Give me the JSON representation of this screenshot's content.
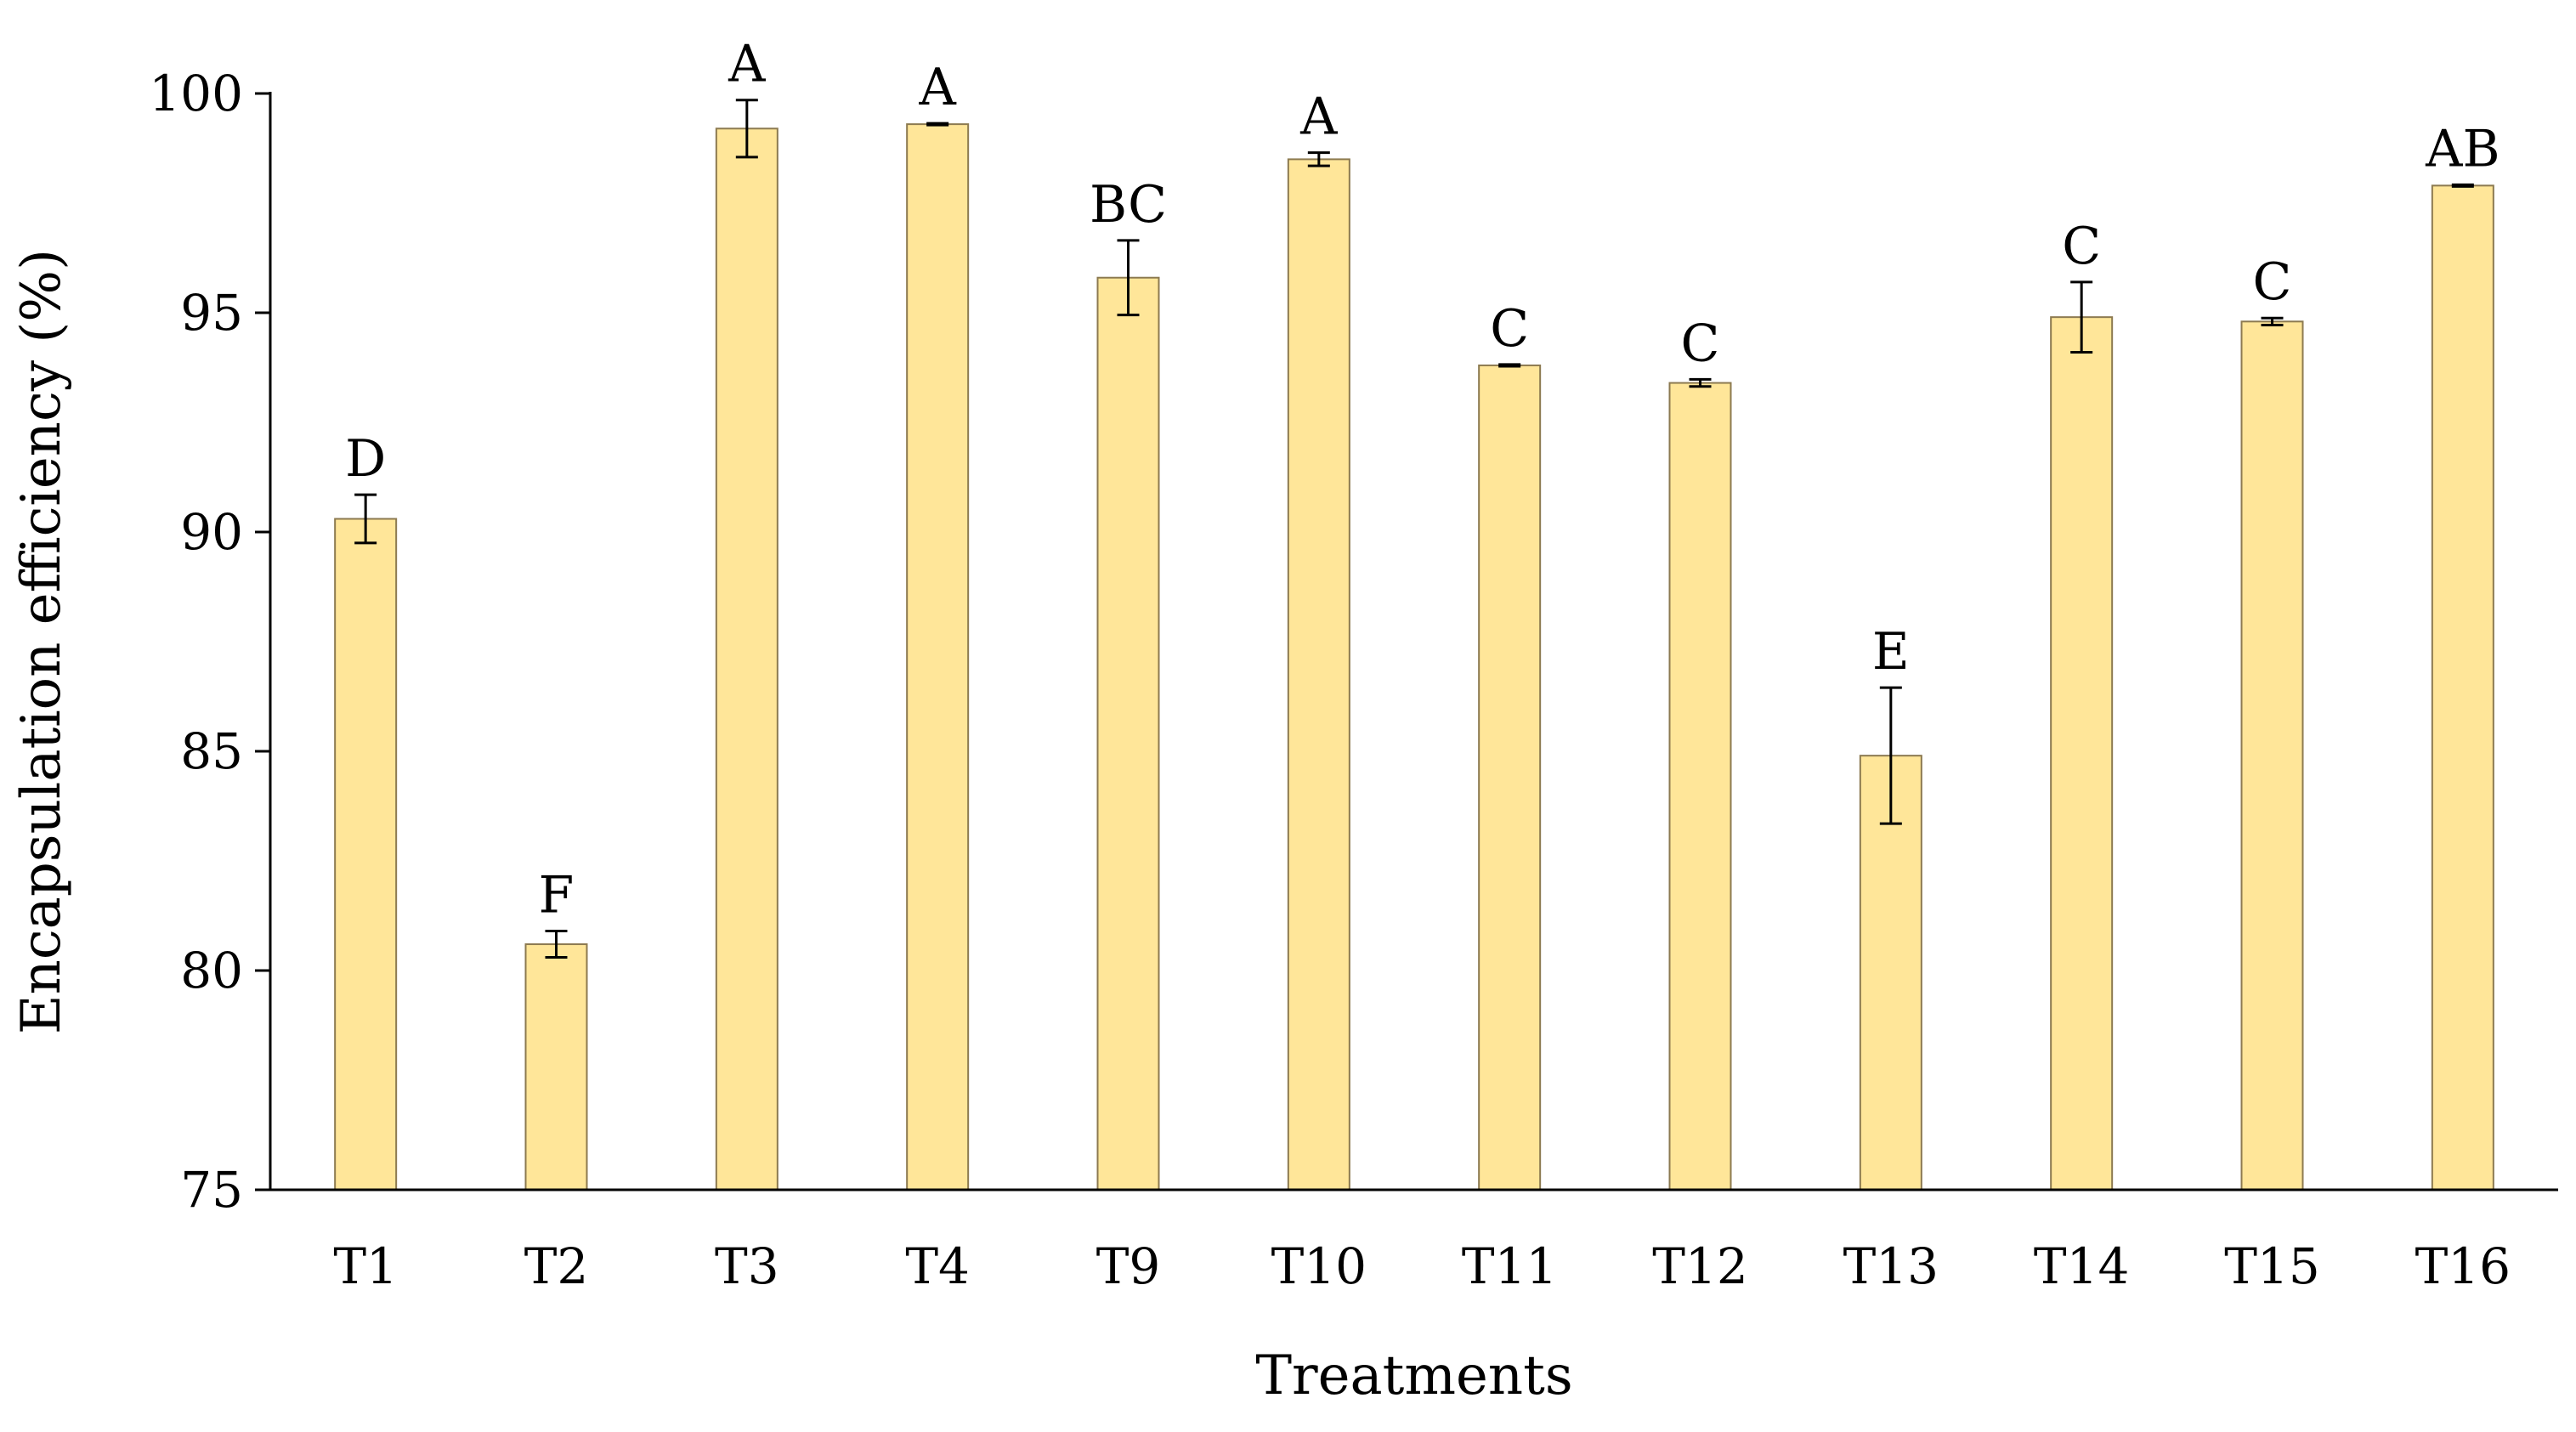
{
  "chart_data": {
    "type": "bar",
    "title": "",
    "xlabel": "Treatments",
    "ylabel": "Encapsulation efficiency (%)",
    "ylim": [
      75,
      100
    ],
    "yticks": [
      75,
      80,
      85,
      90,
      95,
      100
    ],
    "grid": false,
    "legend": "none",
    "bar_color": "#FFE699",
    "bar_edge_color": "#8C7A50",
    "categories": [
      "T1",
      "T2",
      "T3",
      "T4",
      "T9",
      "T10",
      "T11",
      "T12",
      "T13",
      "T14",
      "T15",
      "T16"
    ],
    "series": [
      {
        "values": [
          90.3,
          80.6,
          99.2,
          99.3,
          95.8,
          98.5,
          93.8,
          93.4,
          84.9,
          94.9,
          94.8,
          97.9
        ],
        "errors": [
          0.55,
          0.3,
          0.65,
          0.02,
          0.85,
          0.15,
          0.02,
          0.08,
          1.55,
          0.8,
          0.08,
          0.02
        ]
      }
    ],
    "annotations": [
      "D",
      "F",
      "A",
      "A",
      "BC",
      "A",
      "C",
      "C",
      "E",
      "C",
      "C",
      "AB"
    ]
  }
}
